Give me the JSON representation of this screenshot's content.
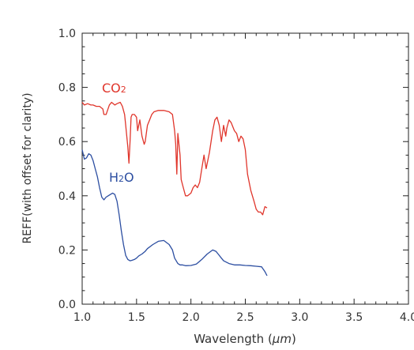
{
  "chart_data": {
    "type": "line",
    "title": "",
    "xlabel_prefix": "Wavelength (",
    "xlabel_unit": "μm",
    "xlabel_suffix": ")",
    "ylabel": "REFF(with offset for clarity)",
    "xlim": [
      1.0,
      4.0
    ],
    "ylim": [
      0.0,
      1.0
    ],
    "x_ticks": [
      "1.0",
      "1.5",
      "2.0",
      "2.5",
      "3.0",
      "3.5",
      "4.0"
    ],
    "y_ticks": [
      "0.0",
      "0.2",
      "0.4",
      "0.6",
      "0.8",
      "1.0"
    ],
    "grid": false,
    "series": [
      {
        "name": "CO2",
        "label_main": "CO",
        "label_sub": "2",
        "color": "#e0352b",
        "x": [
          1.0,
          1.02,
          1.05,
          1.08,
          1.1,
          1.13,
          1.16,
          1.19,
          1.2,
          1.22,
          1.25,
          1.27,
          1.3,
          1.32,
          1.35,
          1.37,
          1.39,
          1.4,
          1.42,
          1.43,
          1.44,
          1.45,
          1.46,
          1.48,
          1.5,
          1.51,
          1.53,
          1.55,
          1.57,
          1.58,
          1.6,
          1.62,
          1.64,
          1.66,
          1.7,
          1.75,
          1.8,
          1.83,
          1.85,
          1.86,
          1.87,
          1.88,
          1.9,
          1.91,
          1.93,
          1.95,
          1.97,
          2.0,
          2.02,
          2.04,
          2.06,
          2.08,
          2.1,
          2.12,
          2.14,
          2.17,
          2.2,
          2.22,
          2.24,
          2.26,
          2.28,
          2.3,
          2.32,
          2.33,
          2.35,
          2.37,
          2.4,
          2.42,
          2.44,
          2.46,
          2.48,
          2.5,
          2.52,
          2.55,
          2.58,
          2.6,
          2.62,
          2.64,
          2.66,
          2.68,
          2.7
        ],
        "y": [
          0.745,
          0.735,
          0.74,
          0.735,
          0.735,
          0.73,
          0.73,
          0.72,
          0.7,
          0.7,
          0.735,
          0.745,
          0.735,
          0.74,
          0.745,
          0.73,
          0.7,
          0.66,
          0.58,
          0.52,
          0.6,
          0.69,
          0.7,
          0.7,
          0.69,
          0.64,
          0.68,
          0.62,
          0.59,
          0.6,
          0.66,
          0.68,
          0.7,
          0.71,
          0.715,
          0.715,
          0.71,
          0.7,
          0.64,
          0.59,
          0.48,
          0.63,
          0.55,
          0.46,
          0.43,
          0.4,
          0.4,
          0.41,
          0.43,
          0.44,
          0.43,
          0.45,
          0.5,
          0.55,
          0.5,
          0.56,
          0.64,
          0.68,
          0.69,
          0.66,
          0.6,
          0.66,
          0.62,
          0.65,
          0.68,
          0.67,
          0.64,
          0.63,
          0.6,
          0.62,
          0.61,
          0.57,
          0.48,
          0.42,
          0.38,
          0.35,
          0.34,
          0.34,
          0.33,
          0.36,
          0.355
        ]
      },
      {
        "name": "H2O",
        "label_main": "H",
        "label_sub": "2",
        "label_end": "O",
        "color": "#2c4ea1",
        "x": [
          1.0,
          1.02,
          1.04,
          1.06,
          1.08,
          1.1,
          1.12,
          1.14,
          1.16,
          1.18,
          1.2,
          1.22,
          1.24,
          1.26,
          1.28,
          1.3,
          1.32,
          1.34,
          1.36,
          1.38,
          1.4,
          1.42,
          1.44,
          1.46,
          1.48,
          1.5,
          1.52,
          1.55,
          1.58,
          1.6,
          1.65,
          1.7,
          1.75,
          1.8,
          1.83,
          1.85,
          1.88,
          1.9,
          1.92,
          1.95,
          2.0,
          2.05,
          2.1,
          2.15,
          2.2,
          2.23,
          2.25,
          2.28,
          2.3,
          2.35,
          2.4,
          2.45,
          2.5,
          2.55,
          2.6,
          2.65,
          2.68,
          2.7
        ],
        "y": [
          0.57,
          0.535,
          0.54,
          0.555,
          0.55,
          0.53,
          0.5,
          0.47,
          0.43,
          0.395,
          0.385,
          0.395,
          0.4,
          0.405,
          0.41,
          0.405,
          0.38,
          0.33,
          0.27,
          0.22,
          0.18,
          0.165,
          0.16,
          0.162,
          0.165,
          0.17,
          0.178,
          0.185,
          0.195,
          0.205,
          0.22,
          0.232,
          0.235,
          0.22,
          0.2,
          0.17,
          0.15,
          0.145,
          0.145,
          0.142,
          0.143,
          0.148,
          0.165,
          0.185,
          0.2,
          0.195,
          0.185,
          0.17,
          0.16,
          0.15,
          0.145,
          0.145,
          0.143,
          0.142,
          0.14,
          0.138,
          0.12,
          0.105
        ]
      }
    ]
  }
}
